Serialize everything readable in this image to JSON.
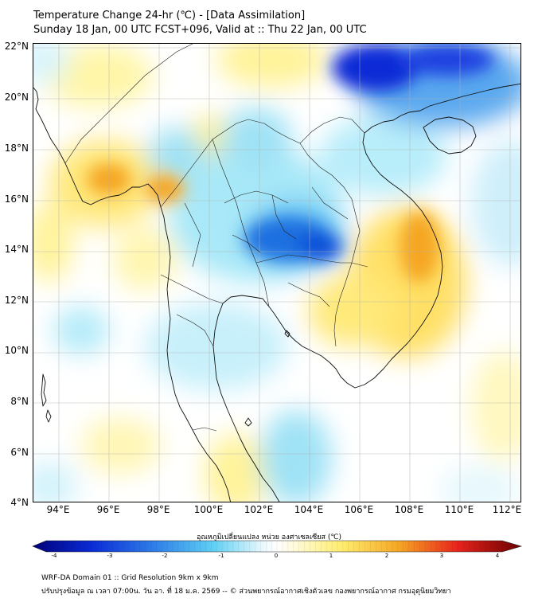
{
  "header": {
    "title": "Temperature Change 24-hr (℃) - [Data Assimilation]",
    "subtitle": "Sunday 18 Jan, 00 UTC FCST+096, Valid at :: Thu 22 Jan, 00 UTC"
  },
  "map": {
    "lat_labels": [
      "22°N",
      "20°N",
      "18°N",
      "16°N",
      "14°N",
      "12°N",
      "10°N",
      "8°N",
      "6°N",
      "4°N"
    ],
    "lon_labels": [
      "94°E",
      "96°E",
      "98°E",
      "100°E",
      "102°E",
      "104°E",
      "106°E",
      "108°E",
      "110°E",
      "112°E"
    ],
    "lat_range": [
      4,
      22
    ],
    "lon_range": [
      93,
      112.3
    ]
  },
  "colorbar": {
    "title": "อุณหภูมิเปลี่ยนแปลง หน่วย องศาเซลเซียส (℃)",
    "ticks": [
      "-4",
      "-3",
      "-2",
      "-1",
      "0",
      "1",
      "2",
      "3",
      "4"
    ],
    "range": [
      -4,
      4
    ]
  },
  "footer": {
    "line1": "WRF-DA Domain 01 :: Grid Resolution 9km x 9km",
    "line2": "ปรับปรุงข้อมูล ณ เวลา 07:00น. วัน อา. ที่ 18 ม.ค. 2569 -- © ส่วนพยากรณ์อากาศเชิงตัวเลข กองพยากรณ์อากาศ กรมอุตุนิยมวิทยา"
  },
  "colors": {
    "warm_yellow": "#fff08a",
    "warm_orange": "#f5a623",
    "cool_cyan": "#7fdcf5",
    "cool_blue": "#1e6fe0",
    "deep_blue": "#0a2bd6"
  }
}
